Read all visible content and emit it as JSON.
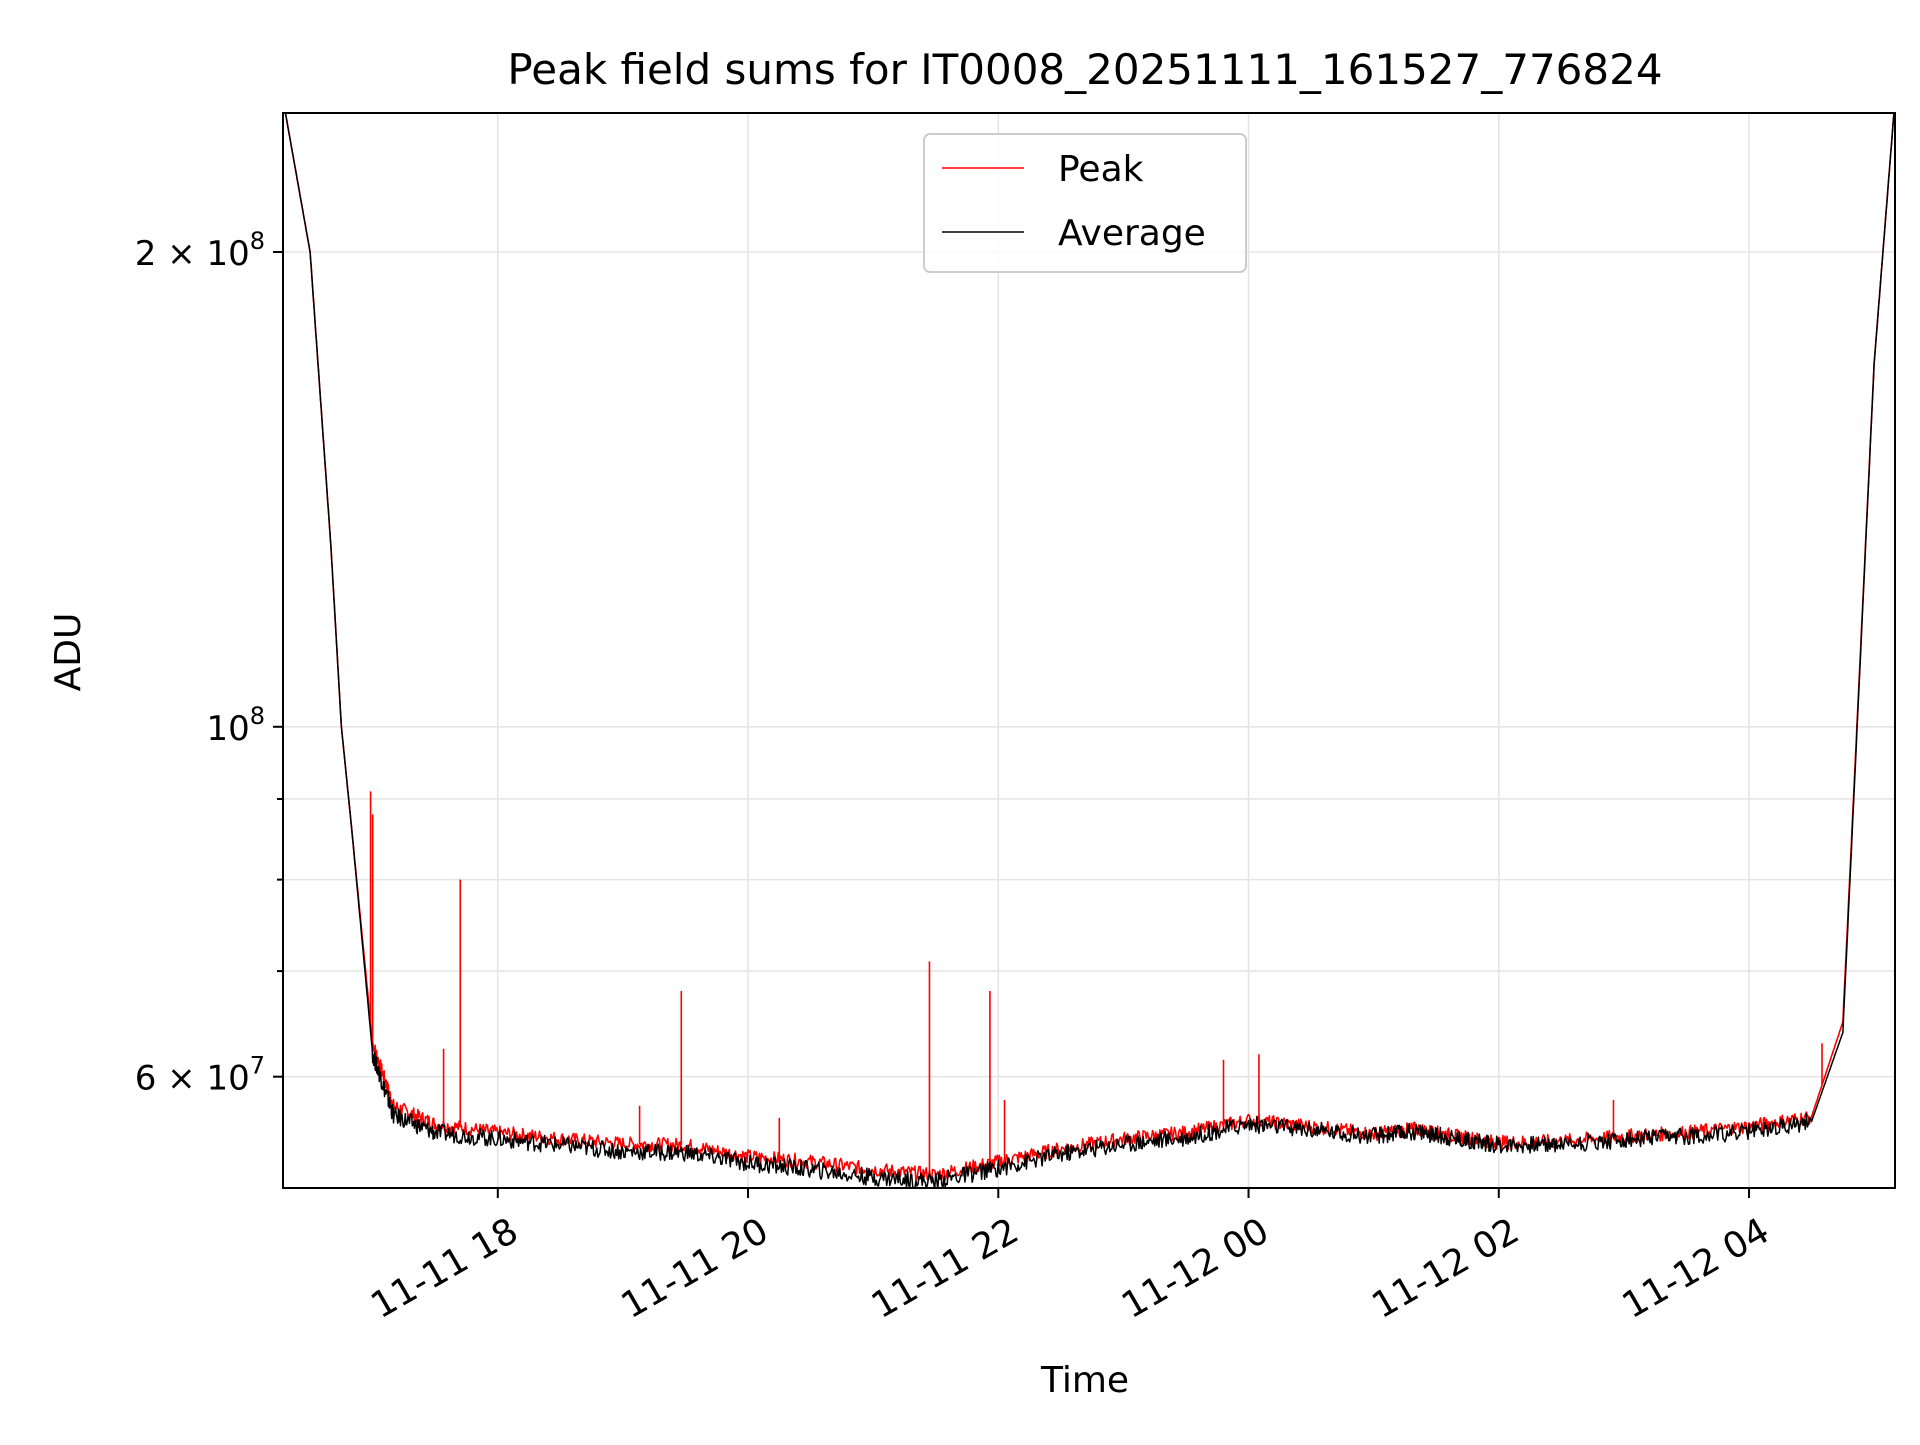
{
  "chart_data": {
    "type": "line",
    "title": "Peak field sums for IT0008_20251111_161527_776824",
    "xlabel": "Time",
    "ylabel": "ADU",
    "y_scale": "log",
    "x_range": [
      "2025-11-11 16:17",
      "2025-11-12 05:10"
    ],
    "ylim": [
      51000000,
      245000000
    ],
    "grid": true,
    "legend_position": "top-center",
    "x_ticks": [
      {
        "time": "2025-11-11 18:00",
        "label": "11-11 18"
      },
      {
        "time": "2025-11-11 20:00",
        "label": "11-11 20"
      },
      {
        "time": "2025-11-11 22:00",
        "label": "11-11 22"
      },
      {
        "time": "2025-11-12 00:00",
        "label": "11-12 00"
      },
      {
        "time": "2025-11-12 02:00",
        "label": "11-12 02"
      },
      {
        "time": "2025-11-12 04:00",
        "label": "11-12 04"
      }
    ],
    "y_major_ticks": [
      {
        "value": 60000000,
        "base": "6 × 10",
        "exp": "7"
      },
      {
        "value": 100000000,
        "base": "10",
        "exp": "8"
      },
      {
        "value": 200000000,
        "base": "2 × 10",
        "exp": "8"
      }
    ],
    "y_minor_ticks": [
      70000000,
      80000000,
      90000000
    ],
    "series": [
      {
        "name": "Peak",
        "color": "#ff0000",
        "x": [
          "2025-11-11 16:17",
          "2025-11-11 16:30",
          "2025-11-11 16:40",
          "2025-11-11 16:45",
          "2025-11-11 16:50",
          "2025-11-11 17:00",
          "2025-11-11 17:10",
          "2025-11-11 17:30",
          "2025-11-11 18:00",
          "2025-11-11 18:30",
          "2025-11-11 19:00",
          "2025-11-11 19:30",
          "2025-11-11 20:00",
          "2025-11-11 20:30",
          "2025-11-11 21:00",
          "2025-11-11 21:30",
          "2025-11-11 22:00",
          "2025-11-11 22:30",
          "2025-11-11 23:00",
          "2025-11-11 23:30",
          "2025-11-12 00:00",
          "2025-11-12 00:30",
          "2025-11-12 01:00",
          "2025-11-12 01:20",
          "2025-11-12 01:40",
          "2025-11-12 02:00",
          "2025-11-12 02:30",
          "2025-11-12 03:00",
          "2025-11-12 03:30",
          "2025-11-12 04:00",
          "2025-11-12 04:30",
          "2025-11-12 04:45",
          "2025-11-12 05:00",
          "2025-11-12 05:10"
        ],
        "y": [
          250000000,
          200000000,
          130000000,
          100000000,
          86000000,
          63000000,
          57500000,
          56000000,
          55300000,
          54800000,
          54400000,
          54300000,
          53400000,
          53000000,
          52400000,
          52000000,
          53000000,
          54000000,
          54800000,
          55300000,
          56300000,
          55800000,
          55200000,
          55600000,
          55000000,
          54500000,
          54600000,
          55000000,
          55300000,
          55800000,
          56600000,
          65000000,
          170000000,
          250000000
        ]
      },
      {
        "name": "Average",
        "color": "#000000",
        "x": [
          "2025-11-11 16:17",
          "2025-11-11 16:30",
          "2025-11-11 16:40",
          "2025-11-11 16:45",
          "2025-11-11 16:50",
          "2025-11-11 17:00",
          "2025-11-11 17:10",
          "2025-11-11 17:30",
          "2025-11-11 18:00",
          "2025-11-11 18:30",
          "2025-11-11 19:00",
          "2025-11-11 19:30",
          "2025-11-11 20:00",
          "2025-11-11 20:30",
          "2025-11-11 21:00",
          "2025-11-11 21:30",
          "2025-11-11 22:00",
          "2025-11-11 22:30",
          "2025-11-11 23:00",
          "2025-11-11 23:30",
          "2025-11-12 00:00",
          "2025-11-12 00:30",
          "2025-11-12 01:00",
          "2025-11-12 01:20",
          "2025-11-12 01:40",
          "2025-11-12 02:00",
          "2025-11-12 02:30",
          "2025-11-12 03:00",
          "2025-11-12 03:30",
          "2025-11-12 04:00",
          "2025-11-12 04:30",
          "2025-11-12 04:45",
          "2025-11-12 05:00",
          "2025-11-12 05:10"
        ],
        "y": [
          250000000,
          200000000,
          130000000,
          100000000,
          86000000,
          62000000,
          56700000,
          55300000,
          54800000,
          54300000,
          53800000,
          53700000,
          52900000,
          52400000,
          51800000,
          51500000,
          52500000,
          53600000,
          54400000,
          54900000,
          56000000,
          55500000,
          55000000,
          55400000,
          54800000,
          54300000,
          54400000,
          54700000,
          55000000,
          55400000,
          56200000,
          64000000,
          170000000,
          250000000
        ]
      }
    ],
    "peak_spikes": [
      {
        "time": "2025-11-11 16:59",
        "value": 91000000
      },
      {
        "time": "2025-11-11 17:00",
        "value": 88000000
      },
      {
        "time": "2025-11-11 17:34",
        "value": 62500000
      },
      {
        "time": "2025-11-11 17:42",
        "value": 80000000
      },
      {
        "time": "2025-11-11 19:08",
        "value": 57500000
      },
      {
        "time": "2025-11-11 19:28",
        "value": 68000000
      },
      {
        "time": "2025-11-11 20:15",
        "value": 56500000
      },
      {
        "time": "2025-11-11 21:27",
        "value": 71000000
      },
      {
        "time": "2025-11-11 21:56",
        "value": 68000000
      },
      {
        "time": "2025-11-11 22:03",
        "value": 58000000
      },
      {
        "time": "2025-11-11 23:48",
        "value": 61500000
      },
      {
        "time": "2025-11-12 00:05",
        "value": 62000000
      },
      {
        "time": "2025-11-12 02:55",
        "value": 58000000
      },
      {
        "time": "2025-11-12 04:35",
        "value": 63000000
      }
    ]
  },
  "legend": {
    "peak_label": "Peak",
    "average_label": "Average"
  }
}
